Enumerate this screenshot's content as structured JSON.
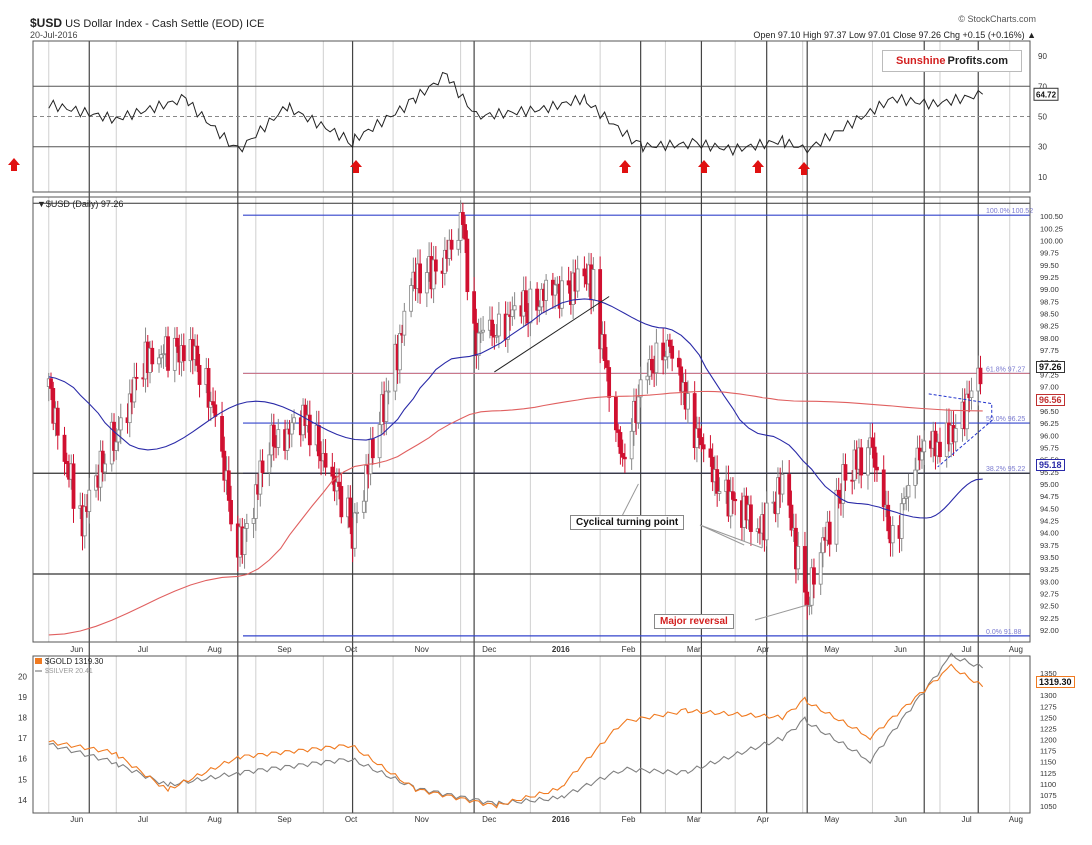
{
  "header": {
    "ticker": "$USD",
    "name": "US Dollar Index - Cash Settle (EOD) ICE",
    "date": "20-Jul-2016",
    "credit": "© StockCharts.com",
    "ohlc": "Open 97.10  High 97.37  Low 97.01  Close 97.26  Chg +0.15 (+0.16%) ▲"
  },
  "logo": {
    "part1": "Sunshine",
    "part2": "Profits.com"
  },
  "rsi_panel": {
    "ticks": [
      "90",
      "70",
      "50",
      "30",
      "10"
    ],
    "current_label": "64.72"
  },
  "price_panel": {
    "legend": "▼$USD (Daily) 97.26",
    "ticks": [
      "100.50",
      "100.25",
      "100.00",
      "99.75",
      "99.50",
      "99.25",
      "99.00",
      "98.75",
      "98.50",
      "98.25",
      "98.00",
      "97.75",
      "97.50",
      "97.25",
      "97.00",
      "96.75",
      "96.50",
      "96.25",
      "96.00",
      "95.75",
      "95.50",
      "95.25",
      "95.00",
      "94.75",
      "94.50",
      "94.25",
      "94.00",
      "93.75",
      "93.50",
      "93.25",
      "93.00",
      "92.75",
      "92.50",
      "92.25",
      "92.00"
    ],
    "fib_labels": [
      "100.0%  100.52",
      "61.8%  97.27",
      "50.0%  96.25",
      "38.2%  95.22",
      "0.0%  91.88"
    ],
    "price_tags": [
      "97.26",
      "96.56",
      "95.18"
    ]
  },
  "annotations": {
    "cyclical": "Cyclical turning point",
    "major": "Major reversal"
  },
  "gold_panel": {
    "legend_gold": "$GOLD 1319.30",
    "legend_silver": "$SILVER 20.41",
    "left_ticks": [
      "20",
      "19",
      "18",
      "17",
      "16",
      "15",
      "14"
    ],
    "right_ticks": [
      "1350",
      "1325",
      "1300",
      "1275",
      "1250",
      "1225",
      "1200",
      "1175",
      "1150",
      "1125",
      "1100",
      "1075",
      "1050"
    ],
    "gold_label": "1319.30",
    "silver_label": "20.41"
  },
  "x_axis": {
    "labels": [
      "Jun",
      "Jul",
      "Aug",
      "Sep",
      "Oct",
      "Nov",
      "Dec",
      "2016",
      "Feb",
      "Mar",
      "Apr",
      "May",
      "Jun",
      "Jul",
      "Aug"
    ]
  },
  "colors": {
    "up_candle": "#888888",
    "down_candle": "#d01030",
    "ma50": "#2a2aa8",
    "ma200": "#e06060",
    "gold": "#f07a20",
    "silver": "#808080",
    "fib": "#3344cc",
    "signal": "#e01010"
  },
  "chart_data": [
    {
      "type": "line",
      "title": "RSI",
      "ylim": [
        0,
        100
      ],
      "x": [
        "2015-06-01",
        "2015-07-01",
        "2015-08-01",
        "2015-08-24",
        "2015-09-15",
        "2015-10-14",
        "2015-11-10",
        "2015-11-25",
        "2015-12-08",
        "2016-01-07",
        "2016-01-25",
        "2016-02-19",
        "2016-03-15",
        "2016-03-31",
        "2016-04-22",
        "2016-05-03",
        "2016-06-10",
        "2016-06-28",
        "2016-07-20"
      ],
      "values": [
        58,
        48,
        62,
        27,
        57,
        33,
        60,
        78,
        50,
        55,
        62,
        30,
        32,
        28,
        34,
        28,
        62,
        58,
        64.72
      ]
    },
    {
      "type": "candlestick",
      "title": "$USD (Daily)",
      "ylim": [
        92.0,
        100.75
      ],
      "x": [
        "2015-06-01",
        "2015-06-15",
        "2015-07-01",
        "2015-07-15",
        "2015-08-03",
        "2015-08-13",
        "2015-08-24",
        "2015-09-08",
        "2015-09-24",
        "2015-10-14",
        "2015-10-30",
        "2015-11-10",
        "2015-11-25",
        "2015-12-02",
        "2015-12-07",
        "2015-12-16",
        "2015-12-31",
        "2016-01-15",
        "2016-01-29",
        "2016-02-05",
        "2016-02-11",
        "2016-02-19",
        "2016-03-01",
        "2016-03-10",
        "2016-03-21",
        "2016-04-01",
        "2016-04-12",
        "2016-04-22",
        "2016-05-03",
        "2016-05-18",
        "2016-05-31",
        "2016-06-10",
        "2016-06-24",
        "2016-07-01",
        "2016-07-20"
      ],
      "values": [
        97.0,
        94.2,
        96.1,
        97.6,
        97.8,
        96.6,
        93.6,
        95.9,
        96.3,
        94.1,
        97.0,
        99.1,
        99.7,
        100.3,
        98.0,
        98.2,
        98.7,
        99.0,
        99.2,
        96.9,
        95.4,
        97.0,
        98.0,
        96.7,
        95.2,
        94.6,
        94.1,
        95.0,
        92.6,
        95.0,
        95.8,
        93.8,
        96.0,
        95.6,
        97.26
      ],
      "series_overlays": [
        {
          "name": "MA50",
          "x": [
            "2015-06-01",
            "2015-07-15",
            "2015-09-01",
            "2015-10-20",
            "2015-12-01",
            "2016-01-25",
            "2016-03-01",
            "2016-04-15",
            "2016-05-25",
            "2016-06-25",
            "2016-07-20"
          ],
          "values": [
            97.2,
            95.7,
            96.7,
            95.9,
            97.6,
            98.8,
            98.2,
            96.0,
            94.6,
            94.3,
            95.1
          ]
        },
        {
          "name": "MA200",
          "x": [
            "2015-06-01",
            "2015-08-24",
            "2015-10-20",
            "2015-12-15",
            "2016-02-10",
            "2016-03-20",
            "2016-05-01",
            "2016-07-20"
          ],
          "values": [
            91.9,
            93.1,
            95.4,
            96.5,
            96.8,
            96.9,
            96.7,
            96.5
          ]
        }
      ],
      "horizontal_levels": [
        100.52,
        97.27,
        96.25,
        95.22,
        91.88,
        93.15
      ],
      "annotations": [
        "Cyclical turning point",
        "Major reversal"
      ]
    },
    {
      "type": "line",
      "series": [
        {
          "name": "$GOLD",
          "x": [
            "2015-06-01",
            "2015-07-01",
            "2015-07-24",
            "2015-08-24",
            "2015-10-14",
            "2015-11-10",
            "2015-12-17",
            "2016-01-15",
            "2016-02-11",
            "2016-03-10",
            "2016-04-22",
            "2016-05-02",
            "2016-05-31",
            "2016-07-06",
            "2016-07-20"
          ],
          "values": [
            1195,
            1170,
            1085,
            1160,
            1188,
            1090,
            1050,
            1090,
            1240,
            1265,
            1250,
            1290,
            1205,
            1365,
            1319.3
          ]
        },
        {
          "name": "$SILVER",
          "x": [
            "2015-06-01",
            "2015-07-01",
            "2015-07-24",
            "2015-08-24",
            "2015-10-14",
            "2015-11-10",
            "2015-12-17",
            "2016-01-15",
            "2016-02-11",
            "2016-03-10",
            "2016-04-22",
            "2016-05-02",
            "2016-05-31",
            "2016-07-06",
            "2016-07-20"
          ],
          "values": [
            16.7,
            15.8,
            14.7,
            15.3,
            16.0,
            14.6,
            13.8,
            14.1,
            15.5,
            15.3,
            17.0,
            17.9,
            15.9,
            21.0,
            20.41
          ]
        }
      ],
      "ylim": [
        1050,
        1375
      ],
      "y2lim": [
        13.7,
        20.7
      ]
    }
  ]
}
